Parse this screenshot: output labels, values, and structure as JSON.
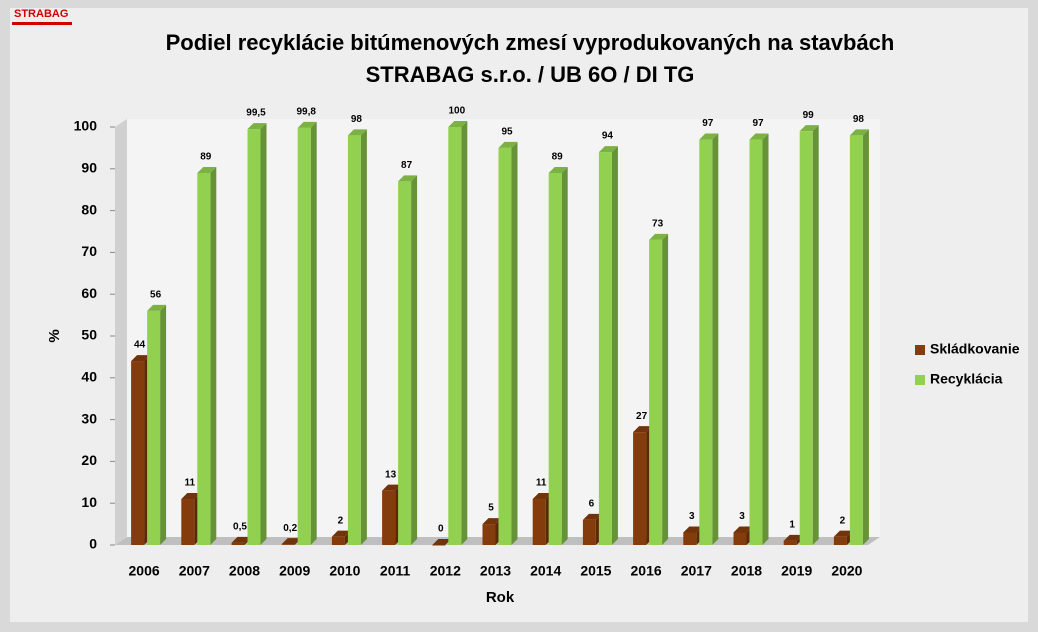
{
  "chart_data": {
    "type": "bar",
    "logo": "STRABAG",
    "title": "Podiel recyklácie bitúmenových zmesí vyprodukovaných na stavbách",
    "subtitle": "STRABAG s.r.o. / UB 6O / DI TG",
    "x_label": "Rok",
    "y_label": "%",
    "categories": [
      "2006",
      "2007",
      "2008",
      "2009",
      "2010",
      "2011",
      "2012",
      "2013",
      "2014",
      "2015",
      "2016",
      "2017",
      "2018",
      "2019",
      "2020"
    ],
    "series": [
      {
        "name": "Skládkovanie",
        "color": "#843c0c",
        "values": [
          44,
          11,
          0.5,
          0.2,
          2,
          13,
          0,
          5,
          11,
          6,
          27,
          3,
          3,
          1,
          2
        ],
        "value_labels": [
          "44",
          "11",
          "0,5",
          "0,2",
          "2",
          "13",
          "0",
          "5",
          "11",
          "6",
          "27",
          "3",
          "3",
          "1",
          "2"
        ]
      },
      {
        "name": "Recyklácia",
        "color": "#92d050",
        "values": [
          56,
          89,
          99.5,
          99.8,
          98,
          87,
          100,
          95,
          89,
          94,
          73,
          97,
          97,
          99,
          98
        ],
        "value_labels": [
          "56",
          "89",
          "99,5",
          "99,8",
          "98",
          "87",
          "100",
          "95",
          "89",
          "94",
          "73",
          "97",
          "97",
          "99",
          "98"
        ]
      }
    ],
    "ylim": [
      0,
      100
    ],
    "yticks": [
      0,
      10,
      20,
      30,
      40,
      50,
      60,
      70,
      80,
      90,
      100
    ],
    "grid": false,
    "legend": "right"
  }
}
